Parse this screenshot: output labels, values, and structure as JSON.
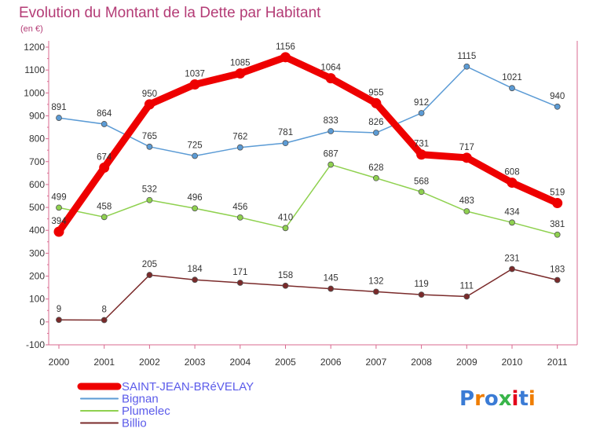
{
  "chart_data": {
    "type": "line",
    "title": "Evolution du Montant de la Dette par Habitant",
    "unit_label": "(en €)",
    "categories": [
      "2000",
      "2001",
      "2002",
      "2003",
      "2004",
      "2005",
      "2006",
      "2007",
      "2008",
      "2009",
      "2010",
      "2011"
    ],
    "ylim": [
      -100,
      1200
    ],
    "yticks": [
      -100,
      0,
      100,
      200,
      300,
      400,
      500,
      600,
      700,
      800,
      900,
      1000,
      1100,
      1200
    ],
    "grid": false,
    "legend_position": "bottom-left",
    "series": [
      {
        "name": "SAINT-JEAN-BRéVELAY",
        "color": "#ee0000",
        "values": [
          394,
          674,
          950,
          1037,
          1085,
          1156,
          1064,
          955,
          731,
          717,
          608,
          519
        ],
        "labels": [
          "394",
          "674",
          "950",
          "1037",
          "1085",
          "1156",
          "1064",
          "955",
          "731",
          "717",
          "608",
          "519"
        ],
        "thick": true
      },
      {
        "name": "Bignan",
        "color": "#5b9bd5",
        "values": [
          891,
          864,
          765,
          725,
          762,
          781,
          833,
          826,
          912,
          1115,
          1021,
          940
        ],
        "labels": [
          "891",
          "864",
          "765",
          "725",
          "762",
          "781",
          "833",
          "826",
          "912",
          "1115",
          "1021",
          "940"
        ],
        "thick": false
      },
      {
        "name": "Plumelec",
        "color": "#8fd14f",
        "values": [
          499,
          458,
          532,
          496,
          456,
          410,
          687,
          628,
          568,
          483,
          434,
          381
        ],
        "labels": [
          "499",
          "458",
          "532",
          "496",
          "456",
          "410",
          "687",
          "628",
          "568",
          "483",
          "434",
          "381"
        ],
        "thick": false
      },
      {
        "name": "Billio",
        "color": "#7a2a2a",
        "values": [
          9,
          8,
          205,
          184,
          171,
          158,
          145,
          132,
          119,
          111,
          231,
          183
        ],
        "labels": [
          "9",
          "8",
          "205",
          "184",
          "171",
          "158",
          "145",
          "132",
          "119",
          "111",
          "231",
          "183"
        ],
        "thick": false
      }
    ]
  },
  "logo": {
    "text": "Proxiti",
    "colors": [
      "#3a7bd5",
      "#ef7d00",
      "#3a7bd5",
      "#39b54a",
      "#e2001a",
      "#3a7bd5",
      "#ef7d00"
    ]
  }
}
